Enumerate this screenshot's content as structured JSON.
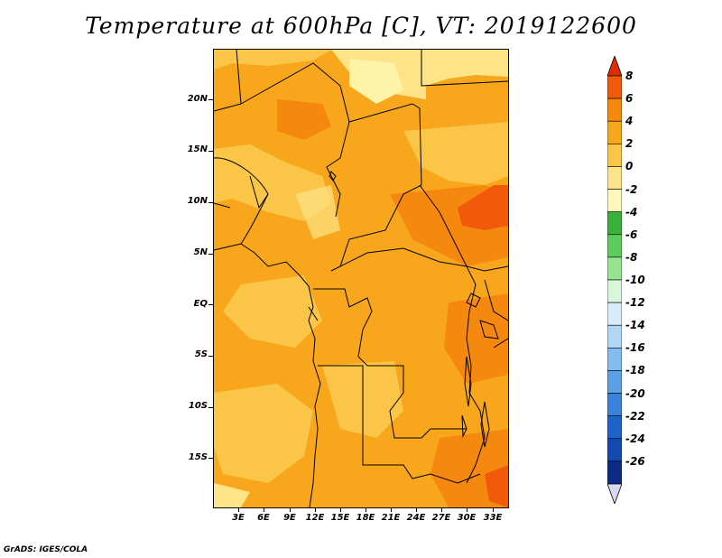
{
  "title": "Temperature at 600hPa [C], VT: 2019122600",
  "footer": "GrADS: IGES/COLA",
  "y_axis_labels": [
    "20N",
    "15N",
    "10N",
    "5N",
    "EQ",
    "5S",
    "10S",
    "15S"
  ],
  "x_axis_labels": [
    "3E",
    "6E",
    "9E",
    "12E",
    "15E",
    "18E",
    "21E",
    "24E",
    "27E",
    "30E",
    "33E"
  ],
  "colorbar": {
    "labels": [
      "8",
      "6",
      "4",
      "2",
      "0",
      "-2",
      "-4",
      "-6",
      "-8",
      "-10",
      "-12",
      "-14",
      "-16",
      "-18",
      "-20",
      "-22",
      "-24",
      "-26"
    ],
    "colors": [
      "#e02d00",
      "#f05a0a",
      "#f5880f",
      "#f8a71c",
      "#fbc548",
      "#fde488",
      "#fff8bb",
      "#38b23a",
      "#5ccc5c",
      "#96e490",
      "#d8f6dc",
      "#d6ecfa",
      "#b0d6f5",
      "#82bdf0",
      "#5ba1e6",
      "#3b82dc",
      "#1e64c8",
      "#124ab0",
      "#0c2a88",
      "#d8d8f4"
    ]
  },
  "map": {
    "region": "Central Africa",
    "lon_range": [
      0,
      35
    ],
    "lat_range": [
      -20,
      24
    ],
    "background_color": "#f8a71c"
  }
}
